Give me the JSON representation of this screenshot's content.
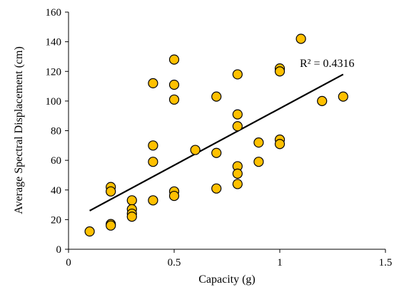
{
  "chart_data": {
    "type": "scatter",
    "xlabel": "Capacity (g)",
    "ylabel": "Average Spectral Displacement (cm)",
    "xlim": [
      0,
      1.5
    ],
    "ylim": [
      0,
      160
    ],
    "x_ticks": [
      "0",
      "0.5",
      "1",
      "1.5"
    ],
    "y_ticks": [
      "0",
      "20",
      "40",
      "60",
      "80",
      "100",
      "120",
      "140",
      "160"
    ],
    "grid": false,
    "marker_color": "#FFC000",
    "marker_edge_color": "#000000",
    "points": [
      {
        "x": 0.1,
        "y": 12
      },
      {
        "x": 0.2,
        "y": 42
      },
      {
        "x": 0.2,
        "y": 39
      },
      {
        "x": 0.2,
        "y": 17
      },
      {
        "x": 0.2,
        "y": 16
      },
      {
        "x": 0.3,
        "y": 33
      },
      {
        "x": 0.3,
        "y": 27
      },
      {
        "x": 0.3,
        "y": 24
      },
      {
        "x": 0.3,
        "y": 22
      },
      {
        "x": 0.4,
        "y": 112
      },
      {
        "x": 0.4,
        "y": 70
      },
      {
        "x": 0.4,
        "y": 59
      },
      {
        "x": 0.4,
        "y": 33
      },
      {
        "x": 0.5,
        "y": 128
      },
      {
        "x": 0.5,
        "y": 111
      },
      {
        "x": 0.5,
        "y": 101
      },
      {
        "x": 0.5,
        "y": 39
      },
      {
        "x": 0.5,
        "y": 36
      },
      {
        "x": 0.6,
        "y": 67
      },
      {
        "x": 0.7,
        "y": 103
      },
      {
        "x": 0.7,
        "y": 65
      },
      {
        "x": 0.7,
        "y": 41
      },
      {
        "x": 0.8,
        "y": 118
      },
      {
        "x": 0.8,
        "y": 91
      },
      {
        "x": 0.8,
        "y": 83
      },
      {
        "x": 0.8,
        "y": 56
      },
      {
        "x": 0.8,
        "y": 51
      },
      {
        "x": 0.8,
        "y": 44
      },
      {
        "x": 0.9,
        "y": 72
      },
      {
        "x": 0.9,
        "y": 59
      },
      {
        "x": 1.0,
        "y": 122
      },
      {
        "x": 1.0,
        "y": 120
      },
      {
        "x": 1.0,
        "y": 74
      },
      {
        "x": 1.0,
        "y": 71
      },
      {
        "x": 1.1,
        "y": 142
      },
      {
        "x": 1.2,
        "y": 100
      },
      {
        "x": 1.3,
        "y": 103
      }
    ],
    "trendline": {
      "type": "linear",
      "x": [
        0.1,
        1.3
      ],
      "y": [
        26,
        118
      ],
      "r_squared_label": "R² = 0.4316"
    }
  }
}
